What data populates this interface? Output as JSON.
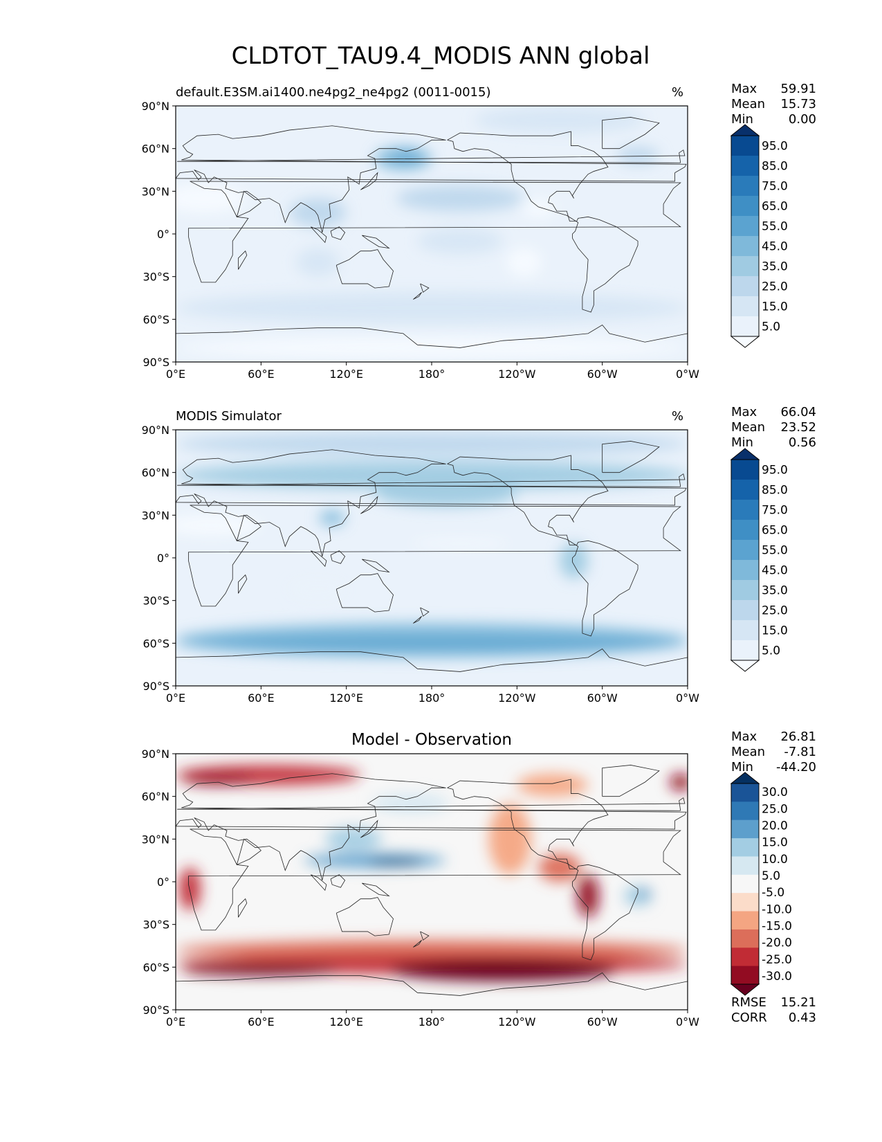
{
  "figure": {
    "title": "CLDTOT_TAU9.4_MODIS ANN global",
    "xticks": [
      "0°E",
      "60°E",
      "120°E",
      "180°",
      "120°W",
      "60°W",
      "0°W"
    ],
    "yticks": [
      "90°N",
      "60°N",
      "30°N",
      "0°",
      "30°S",
      "60°S",
      "90°S"
    ]
  },
  "chart_data": [
    {
      "type": "heatmap",
      "title": "default.E3SM.ai1400.ne4pg2_ne4pg2 (0011-0015)",
      "units": "%",
      "xlim": [
        0,
        360
      ],
      "ylim": [
        -90,
        90
      ],
      "stats": [
        {
          "label": "Max",
          "value": "59.91"
        },
        {
          "label": "Mean",
          "value": "15.73"
        },
        {
          "label": "Min",
          "value": "0.00"
        }
      ],
      "colorbar": {
        "labels": [
          "95.0",
          "85.0",
          "75.0",
          "65.0",
          "55.0",
          "45.0",
          "35.0",
          "25.0",
          "15.0",
          "5.0"
        ],
        "colors": [
          "#08306b",
          "#084a91",
          "#1563aa",
          "#2a7bba",
          "#3f8fc5",
          "#5ba3d0",
          "#7fb9da",
          "#a0cbe2",
          "#bdd7ec",
          "#d6e6f4",
          "#eaf2fb",
          "#f7fbff"
        ]
      },
      "field": [
        {
          "lat": 80,
          "lon": 270,
          "w": 120,
          "h": 18,
          "level": 2
        },
        {
          "lat": 53,
          "lon": 160,
          "w": 40,
          "h": 16,
          "level": 5
        },
        {
          "lat": 55,
          "lon": 162,
          "w": 18,
          "h": 7,
          "level": 6
        },
        {
          "lat": 25,
          "lon": 200,
          "w": 90,
          "h": 18,
          "level": 3
        },
        {
          "lat": 15,
          "lon": 100,
          "w": 40,
          "h": 20,
          "level": 3
        },
        {
          "lat": 55,
          "lon": 325,
          "w": 30,
          "h": 12,
          "level": 3
        },
        {
          "lat": -52,
          "lon": 180,
          "w": 360,
          "h": 22,
          "level": 2
        },
        {
          "lat": -5,
          "lon": 200,
          "w": 60,
          "h": 18,
          "level": 2
        },
        {
          "lat": -20,
          "lon": 100,
          "w": 30,
          "h": 20,
          "level": 2
        },
        {
          "lat": 25,
          "lon": 20,
          "w": 60,
          "h": 20,
          "level": 0
        },
        {
          "lat": 18,
          "lon": 255,
          "w": 25,
          "h": 12,
          "level": 0
        },
        {
          "lat": -80,
          "lon": 180,
          "w": 360,
          "h": 14,
          "level": 0
        },
        {
          "lat": -20,
          "lon": 245,
          "w": 25,
          "h": 20,
          "level": 0
        }
      ]
    },
    {
      "type": "heatmap",
      "title": "MODIS Simulator",
      "units": "%",
      "xlim": [
        0,
        360
      ],
      "ylim": [
        -90,
        90
      ],
      "stats": [
        {
          "label": "Max",
          "value": "66.04"
        },
        {
          "label": "Mean",
          "value": "23.52"
        },
        {
          "label": "Min",
          "value": "0.56"
        }
      ],
      "colorbar": {
        "labels": [
          "95.0",
          "85.0",
          "75.0",
          "65.0",
          "55.0",
          "45.0",
          "35.0",
          "25.0",
          "15.0",
          "5.0"
        ],
        "colors": [
          "#08306b",
          "#084a91",
          "#1563aa",
          "#2a7bba",
          "#3f8fc5",
          "#5ba3d0",
          "#7fb9da",
          "#a0cbe2",
          "#bdd7ec",
          "#d6e6f4",
          "#eaf2fb",
          "#f7fbff"
        ]
      },
      "field": [
        {
          "lat": 80,
          "lon": 180,
          "w": 360,
          "h": 16,
          "level": 3
        },
        {
          "lat": 58,
          "lon": 180,
          "w": 360,
          "h": 20,
          "level": 4
        },
        {
          "lat": 45,
          "lon": 190,
          "w": 100,
          "h": 18,
          "level": 4
        },
        {
          "lat": 28,
          "lon": 110,
          "w": 18,
          "h": 10,
          "level": 5
        },
        {
          "lat": -58,
          "lon": 180,
          "w": 360,
          "h": 24,
          "level": 5
        },
        {
          "lat": -60,
          "lon": 180,
          "w": 360,
          "h": 8,
          "level": 6
        },
        {
          "lat": -2,
          "lon": 280,
          "w": 20,
          "h": 25,
          "level": 4
        },
        {
          "lat": 10,
          "lon": 200,
          "w": 70,
          "h": 5,
          "level": 0
        },
        {
          "lat": 23,
          "lon": 25,
          "w": 70,
          "h": 14,
          "level": 0
        },
        {
          "lat": -22,
          "lon": 100,
          "w": 40,
          "h": 14,
          "level": 1
        }
      ]
    },
    {
      "type": "heatmap",
      "title": "Model - Observation",
      "units": "",
      "xlim": [
        0,
        360
      ],
      "ylim": [
        -90,
        90
      ],
      "stats": [
        {
          "label": "Max",
          "value": "26.81"
        },
        {
          "label": "Mean",
          "value": "-7.81"
        },
        {
          "label": "Min",
          "value": "-44.20"
        }
      ],
      "metrics": [
        {
          "label": "RMSE",
          "value": "15.21"
        },
        {
          "label": "CORR",
          "value": "0.43"
        }
      ],
      "colorbar": {
        "labels": [
          "30.0",
          "25.0",
          "20.0",
          "15.0",
          "10.0",
          "5.0",
          "-5.0",
          "-10.0",
          "-15.0",
          "-20.0",
          "-25.0",
          "-30.0"
        ],
        "colors": [
          "#053061",
          "#1a5497",
          "#2f79b5",
          "#5d9fcc",
          "#a3cde3",
          "#d6e8f1",
          "#f7f7f7",
          "#fbdcc9",
          "#f4a582",
          "#dc6e5a",
          "#c12c35",
          "#920c22",
          "#67001f"
        ]
      },
      "field": [
        {
          "lat": 75,
          "lon": 65,
          "w": 130,
          "h": 14,
          "level": 10
        },
        {
          "lat": 72,
          "lon": 30,
          "w": 50,
          "h": 8,
          "level": 11
        },
        {
          "lat": 70,
          "lon": 355,
          "w": 15,
          "h": 12,
          "level": 11
        },
        {
          "lat": 68,
          "lon": 265,
          "w": 50,
          "h": 16,
          "level": 8
        },
        {
          "lat": 30,
          "lon": 235,
          "w": 30,
          "h": 50,
          "level": 8
        },
        {
          "lat": 10,
          "lon": 270,
          "w": 30,
          "h": 20,
          "level": 9
        },
        {
          "lat": -10,
          "lon": 290,
          "w": 15,
          "h": 30,
          "level": 11
        },
        {
          "lat": -5,
          "lon": 10,
          "w": 15,
          "h": 30,
          "level": 10
        },
        {
          "lat": -48,
          "lon": 180,
          "w": 360,
          "h": 14,
          "level": 9
        },
        {
          "lat": -58,
          "lon": 180,
          "w": 360,
          "h": 14,
          "level": 10
        },
        {
          "lat": -62,
          "lon": 230,
          "w": 160,
          "h": 16,
          "level": 12
        },
        {
          "lat": -62,
          "lon": 60,
          "w": 110,
          "h": 8,
          "level": 12
        },
        {
          "lat": 15,
          "lon": 140,
          "w": 100,
          "h": 10,
          "level": 3
        },
        {
          "lat": 14,
          "lon": 155,
          "w": 40,
          "h": 4,
          "level": 0
        },
        {
          "lat": 30,
          "lon": 125,
          "w": 40,
          "h": 16,
          "level": 4
        },
        {
          "lat": 55,
          "lon": 165,
          "w": 55,
          "h": 14,
          "level": 5
        },
        {
          "lat": -10,
          "lon": 325,
          "w": 20,
          "h": 14,
          "level": 4
        },
        {
          "lat": -8,
          "lon": 330,
          "w": 8,
          "h": 5,
          "level": 2
        }
      ]
    }
  ]
}
